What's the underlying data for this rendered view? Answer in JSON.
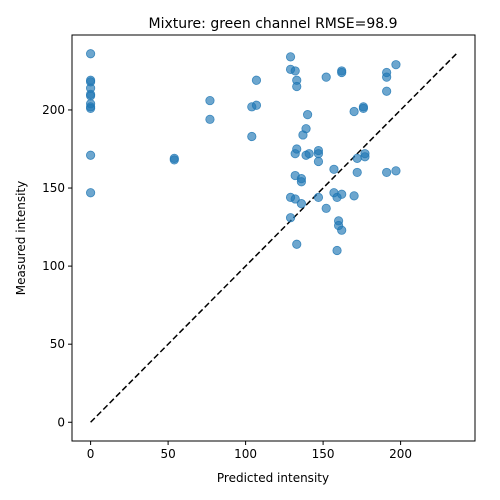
{
  "chart_data": {
    "type": "scatter",
    "title": "Mixture: green channel RMSE=98.9",
    "xlabel": "Predicted intensity",
    "ylabel": "Measured intensity",
    "xlim": [
      -12,
      248
    ],
    "ylim": [
      -12,
      248
    ],
    "xticks": [
      0,
      50,
      100,
      150,
      200
    ],
    "yticks": [
      0,
      50,
      100,
      150,
      200
    ],
    "grid": false,
    "point_color": "#1f77b4",
    "line_color": "#000000",
    "reference_line": {
      "x": [
        0,
        236
      ],
      "y": [
        0,
        236
      ],
      "style": "dashed"
    },
    "points": [
      [
        0,
        236
      ],
      [
        0,
        219
      ],
      [
        0,
        218
      ],
      [
        0,
        214
      ],
      [
        0,
        210
      ],
      [
        0,
        209
      ],
      [
        0,
        204
      ],
      [
        0,
        202
      ],
      [
        0,
        201
      ],
      [
        0,
        171
      ],
      [
        0,
        147
      ],
      [
        54,
        169
      ],
      [
        54,
        168
      ],
      [
        77,
        206
      ],
      [
        77,
        194
      ],
      [
        104,
        202
      ],
      [
        104,
        183
      ],
      [
        107,
        219
      ],
      [
        107,
        203
      ],
      [
        129,
        234
      ],
      [
        129,
        226
      ],
      [
        129,
        144
      ],
      [
        129,
        131
      ],
      [
        132,
        225
      ],
      [
        132,
        172
      ],
      [
        132,
        158
      ],
      [
        132,
        143
      ],
      [
        133,
        219
      ],
      [
        133,
        215
      ],
      [
        133,
        175
      ],
      [
        133,
        114
      ],
      [
        136,
        156
      ],
      [
        136,
        154
      ],
      [
        136,
        140
      ],
      [
        137,
        184
      ],
      [
        139,
        188
      ],
      [
        139,
        171
      ],
      [
        140,
        197
      ],
      [
        141,
        172
      ],
      [
        147,
        174
      ],
      [
        147,
        172
      ],
      [
        147,
        167
      ],
      [
        147,
        144
      ],
      [
        152,
        221
      ],
      [
        152,
        137
      ],
      [
        157,
        162
      ],
      [
        157,
        147
      ],
      [
        159,
        144
      ],
      [
        159,
        110
      ],
      [
        160,
        129
      ],
      [
        160,
        126
      ],
      [
        162,
        225
      ],
      [
        162,
        224
      ],
      [
        162,
        146
      ],
      [
        162,
        123
      ],
      [
        170,
        199
      ],
      [
        170,
        145
      ],
      [
        172,
        169
      ],
      [
        172,
        160
      ],
      [
        176,
        202
      ],
      [
        176,
        201
      ],
      [
        177,
        172
      ],
      [
        177,
        170
      ],
      [
        191,
        224
      ],
      [
        191,
        221
      ],
      [
        191,
        212
      ],
      [
        191,
        160
      ],
      [
        197,
        229
      ],
      [
        197,
        161
      ]
    ]
  }
}
